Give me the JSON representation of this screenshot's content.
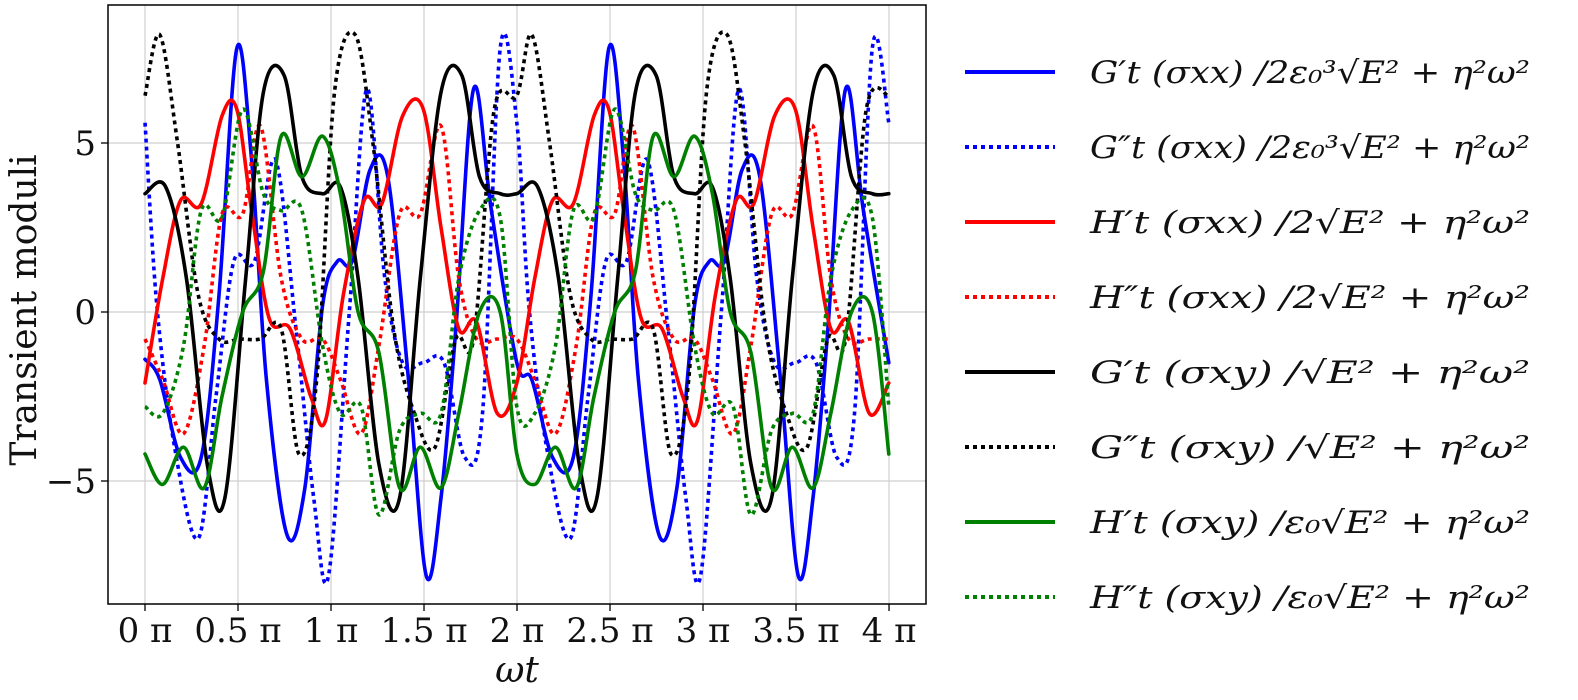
{
  "chart_data": {
    "type": "line",
    "xlabel": "ωt",
    "ylabel": "Transient moduli",
    "xlim": [
      0,
      12.566
    ],
    "ylim": [
      -8.5,
      9
    ],
    "grid": true,
    "legend_position": "right-outside",
    "x_ticks": [
      {
        "value": 0,
        "label": "0 π"
      },
      {
        "value": 1.5708,
        "label": "0.5 π"
      },
      {
        "value": 3.1416,
        "label": "1 π"
      },
      {
        "value": 4.7124,
        "label": "1.5 π"
      },
      {
        "value": 6.2832,
        "label": "2 π"
      },
      {
        "value": 7.854,
        "label": "2.5 π"
      },
      {
        "value": 9.4248,
        "label": "3 π"
      },
      {
        "value": 10.9956,
        "label": "3.5 π"
      },
      {
        "value": 12.5664,
        "label": "4 π"
      }
    ],
    "y_ticks": [
      {
        "value": 5,
        "label": "5"
      },
      {
        "value": 0,
        "label": "0"
      },
      {
        "value": -5,
        "label": "−5"
      }
    ],
    "series": [
      {
        "name": "G′t (σxx) /2ε₀³√E² + η²ω²",
        "color": "#0000ff",
        "style": "solid",
        "x": [
          0,
          0.25,
          0.6,
          0.95,
          1.25,
          1.55,
          1.8,
          2.05,
          2.4,
          2.7,
          3.0,
          3.25,
          3.5,
          3.8,
          4.1,
          4.45,
          4.75,
          5.0,
          5.25,
          5.55,
          5.85,
          6.28
        ],
        "y": [
          -1.4,
          -2.0,
          -4.3,
          -4.3,
          0.5,
          7.8,
          4.5,
          -2.0,
          -6.6,
          -5.2,
          0.2,
          1.5,
          1.5,
          4.2,
          4.0,
          -2.0,
          -7.8,
          -5.5,
          -0.5,
          6.6,
          3.0,
          -1.5
        ]
      },
      {
        "name": "G″t (σxx) /2ε₀³√E² + η²ω²",
        "color": "#0000ff",
        "style": "dotted",
        "x": [
          0,
          0.2,
          0.5,
          0.9,
          1.2,
          1.5,
          1.85,
          2.2,
          2.55,
          2.85,
          3.1,
          3.45,
          3.75,
          4.05,
          4.35,
          4.7,
          5.05,
          5.4,
          5.7,
          6.0,
          6.28
        ],
        "y": [
          5.6,
          0.2,
          -4.0,
          -6.7,
          -2.5,
          1.5,
          1.5,
          4.5,
          -0.5,
          -5.5,
          -7.8,
          0,
          6.6,
          1.0,
          -1.5,
          -1.5,
          -1.5,
          -4.3,
          -3.0,
          7.8,
          5.6
        ]
      },
      {
        "name": "H′t (σxx) /2√E² + η²ω²",
        "color": "#ff0000",
        "style": "solid",
        "x": [
          0,
          0.3,
          0.6,
          0.95,
          1.3,
          1.55,
          1.8,
          2.1,
          2.45,
          2.8,
          3.05,
          3.35,
          3.7,
          4.0,
          4.35,
          4.7,
          5.0,
          5.3,
          5.6,
          5.95,
          6.28
        ],
        "y": [
          -2.1,
          1.0,
          3.3,
          3.2,
          5.8,
          6.0,
          3.0,
          -0.2,
          -0.5,
          -2.5,
          -3.2,
          0.5,
          3.3,
          3.2,
          5.8,
          6.0,
          2.5,
          -0.5,
          -0.3,
          -3.0,
          -2.1
        ]
      },
      {
        "name": "H″t (σxx) /2√E² + η²ω²",
        "color": "#ff0000",
        "style": "dotted",
        "x": [
          0,
          0.3,
          0.65,
          1.0,
          1.3,
          1.65,
          1.95,
          2.3,
          2.65,
          3.0,
          3.3,
          3.65,
          3.95,
          4.3,
          4.65,
          5.0,
          5.3,
          5.6,
          5.95,
          6.28
        ],
        "y": [
          -0.8,
          -2.0,
          -3.6,
          -1.0,
          2.9,
          2.9,
          5.5,
          1.0,
          -0.8,
          -0.8,
          -2.0,
          -3.6,
          -1.0,
          2.9,
          2.9,
          5.5,
          1.0,
          -0.8,
          -0.8,
          -0.8
        ]
      },
      {
        "name": "G′t (σxy) /√E² + η²ω²",
        "color": "#000000",
        "style": "solid",
        "x": [
          0,
          0.35,
          0.7,
          1.05,
          1.35,
          1.7,
          2.0,
          2.35,
          2.65,
          3.0,
          3.3,
          3.6,
          3.95,
          4.3,
          4.65,
          5.0,
          5.35,
          5.65,
          6.0,
          6.28
        ],
        "y": [
          3.5,
          3.7,
          1.0,
          -4.5,
          -5.5,
          1.0,
          6.5,
          7.0,
          4.0,
          3.5,
          3.7,
          1.0,
          -4.5,
          -5.5,
          1.0,
          6.5,
          7.0,
          4.0,
          3.5,
          3.5
        ]
      },
      {
        "name": "G″t (σxy) /√E² + η²ω²",
        "color": "#000000",
        "style": "dotted",
        "x": [
          0,
          0.25,
          0.55,
          0.9,
          1.25,
          1.6,
          1.95,
          2.3,
          2.6,
          2.9,
          3.2,
          3.55,
          3.85,
          4.2,
          4.55,
          4.9,
          5.25,
          5.55,
          5.9,
          6.28
        ],
        "y": [
          6.4,
          8.2,
          5.0,
          0.5,
          -0.8,
          -0.8,
          -0.8,
          -0.5,
          -4.2,
          -2.0,
          6.5,
          8.2,
          5.0,
          -0.5,
          -3.0,
          -4.0,
          -0.8,
          -0.8,
          6.0,
          6.4
        ]
      },
      {
        "name": "H′t (σxy) /ε₀√E² + η²ω²",
        "color": "#008000",
        "style": "solid",
        "x": [
          0,
          0.3,
          0.65,
          1.0,
          1.3,
          1.65,
          2.0,
          2.3,
          2.65,
          3.0,
          3.3,
          3.6,
          3.95,
          4.3,
          4.65,
          5.0,
          5.3,
          5.65,
          6.0,
          6.28
        ],
        "y": [
          -4.2,
          -5.1,
          -4.0,
          -5.2,
          -2.5,
          0.0,
          1.2,
          5.2,
          4.0,
          5.2,
          3.5,
          0.0,
          -1.2,
          -5.2,
          -4.0,
          -5.2,
          -3.0,
          0.0,
          0.0,
          -4.2
        ]
      },
      {
        "name": "H″t (σxy) /ε₀√E² + η²ω²",
        "color": "#008000",
        "style": "dotted",
        "x": [
          0,
          0.3,
          0.65,
          0.95,
          1.3,
          1.65,
          2.0,
          2.3,
          2.65,
          3.0,
          3.3,
          3.65,
          3.95,
          4.3,
          4.65,
          5.0,
          5.3,
          5.65,
          6.0,
          6.28
        ],
        "y": [
          -2.8,
          -3.0,
          -1.0,
          3.0,
          2.8,
          6.0,
          3.5,
          3.0,
          3.0,
          -1.0,
          -3.0,
          -2.8,
          -6.0,
          -3.5,
          -3.0,
          -3.0,
          1.0,
          3.0,
          2.8,
          -2.8
        ]
      }
    ]
  }
}
